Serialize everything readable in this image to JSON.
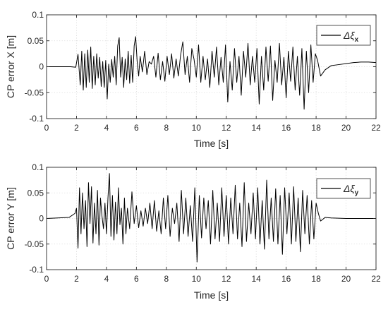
{
  "chart_data": [
    {
      "type": "line",
      "title": "",
      "xlabel": "Time [s]",
      "ylabel": "CP error X [m]",
      "xlim": [
        0,
        22
      ],
      "ylim": [
        -0.1,
        0.1
      ],
      "xticks": [
        0,
        2,
        4,
        6,
        8,
        10,
        12,
        14,
        16,
        18,
        20,
        22
      ],
      "xtick_labels": [
        "0",
        "2",
        "4",
        "6",
        "8",
        "10",
        "12",
        "14",
        "16",
        "18",
        "20",
        "22"
      ],
      "yticks": [
        -0.1,
        -0.05,
        0,
        0.05,
        0.1
      ],
      "ytick_labels": [
        "-0.1",
        "-0.05",
        "0",
        "0.05",
        "0.1"
      ],
      "grid": true,
      "legend_position": "top-right",
      "series": [
        {
          "name_symbol": "Δξ",
          "name_subscript": "x",
          "color": "#000000",
          "x": [
            0,
            1.6,
            1.95,
            2.1,
            2.25,
            2.35,
            2.45,
            2.55,
            2.65,
            2.75,
            2.85,
            2.95,
            3.05,
            3.15,
            3.25,
            3.35,
            3.45,
            3.55,
            3.65,
            3.75,
            3.85,
            3.95,
            4.05,
            4.15,
            4.25,
            4.35,
            4.45,
            4.55,
            4.65,
            4.75,
            4.85,
            4.95,
            5.05,
            5.15,
            5.25,
            5.35,
            5.45,
            5.55,
            5.65,
            5.75,
            5.85,
            5.95,
            6.05,
            6.15,
            6.25,
            6.4,
            6.55,
            6.7,
            6.85,
            7.0,
            7.15,
            7.3,
            7.45,
            7.6,
            7.75,
            7.9,
            8.05,
            8.2,
            8.35,
            8.5,
            8.65,
            8.8,
            8.95,
            9.1,
            9.25,
            9.4,
            9.55,
            9.7,
            9.85,
            10.0,
            10.15,
            10.3,
            10.45,
            10.6,
            10.75,
            10.9,
            11.05,
            11.2,
            11.35,
            11.5,
            11.65,
            11.8,
            11.95,
            12.1,
            12.25,
            12.4,
            12.55,
            12.7,
            12.85,
            13.0,
            13.15,
            13.3,
            13.45,
            13.6,
            13.75,
            13.9,
            14.05,
            14.2,
            14.35,
            14.5,
            14.65,
            14.8,
            14.95,
            15.1,
            15.25,
            15.4,
            15.55,
            15.7,
            15.85,
            16.0,
            16.15,
            16.3,
            16.45,
            16.6,
            16.75,
            16.9,
            17.05,
            17.2,
            17.35,
            17.5,
            17.65,
            17.8,
            17.95,
            18.1,
            18.3,
            18.6,
            19.0,
            19.5,
            20.0,
            20.5,
            21.0,
            21.5,
            22.0
          ],
          "y": [
            0,
            0,
            -0.001,
            0.024,
            -0.035,
            0.03,
            -0.045,
            0.025,
            -0.04,
            0.032,
            -0.03,
            0.038,
            -0.042,
            0.02,
            -0.035,
            0.025,
            -0.022,
            0.018,
            -0.038,
            0.01,
            -0.04,
            0.012,
            -0.062,
            0.005,
            -0.03,
            0.014,
            -0.02,
            0.02,
            -0.035,
            0.04,
            0.056,
            -0.02,
            0.018,
            -0.04,
            0.015,
            -0.025,
            0.03,
            -0.032,
            0.022,
            -0.03,
            0.04,
            0.058,
            0.01,
            -0.018,
            0.02,
            -0.01,
            0.03,
            -0.015,
            0.01,
            0.005,
            0.02,
            -0.02,
            0.026,
            -0.025,
            0.01,
            -0.028,
            0.02,
            -0.015,
            0.025,
            -0.022,
            0.015,
            -0.018,
            0.022,
            0.048,
            -0.015,
            0.02,
            -0.03,
            0.035,
            0.014,
            -0.02,
            0.042,
            -0.03,
            0.02,
            -0.025,
            0.015,
            -0.04,
            0.03,
            -0.02,
            0.038,
            -0.035,
            0.018,
            -0.03,
            0.042,
            -0.068,
            0.01,
            -0.045,
            0.035,
            -0.03,
            0.02,
            -0.055,
            0.03,
            -0.02,
            0.045,
            -0.035,
            0.02,
            -0.03,
            0.035,
            -0.072,
            0.02,
            -0.045,
            0.038,
            -0.028,
            0.04,
            -0.065,
            0.012,
            -0.03,
            0.045,
            -0.035,
            0.018,
            -0.06,
            0.03,
            -0.028,
            0.038,
            -0.045,
            0.02,
            -0.055,
            0.035,
            -0.082,
            0.03,
            -0.05,
            0.042,
            -0.03,
            0.025,
            0.012,
            -0.018,
            -0.006,
            0.002,
            0.004,
            0.006,
            0.008,
            0.009,
            0.009,
            0.008
          ]
        }
      ]
    },
    {
      "type": "line",
      "title": "",
      "xlabel": "Time [s]",
      "ylabel": "CP error Y [m]",
      "xlim": [
        0,
        22
      ],
      "ylim": [
        -0.1,
        0.1
      ],
      "xticks": [
        0,
        2,
        4,
        6,
        8,
        10,
        12,
        14,
        16,
        18,
        20,
        22
      ],
      "xtick_labels": [
        "0",
        "2",
        "4",
        "6",
        "8",
        "10",
        "12",
        "14",
        "16",
        "18",
        "20",
        "22"
      ],
      "yticks": [
        -0.1,
        -0.05,
        0,
        0.05,
        0.1
      ],
      "ytick_labels": [
        "-0.1",
        "-0.05",
        "0",
        "0.05",
        "0.1"
      ],
      "grid": true,
      "legend_position": "top-right",
      "series": [
        {
          "name_symbol": "Δξ",
          "name_subscript": "y",
          "color": "#000000",
          "x": [
            0,
            1.5,
            1.9,
            2.0,
            2.1,
            2.2,
            2.3,
            2.4,
            2.5,
            2.6,
            2.7,
            2.8,
            2.9,
            3.0,
            3.1,
            3.2,
            3.3,
            3.4,
            3.5,
            3.6,
            3.7,
            3.8,
            3.9,
            4.0,
            4.1,
            4.2,
            4.3,
            4.4,
            4.5,
            4.6,
            4.7,
            4.8,
            4.9,
            5.0,
            5.1,
            5.2,
            5.3,
            5.4,
            5.55,
            5.7,
            5.85,
            6.0,
            6.15,
            6.3,
            6.45,
            6.6,
            6.75,
            6.9,
            7.05,
            7.2,
            7.35,
            7.5,
            7.65,
            7.8,
            7.95,
            8.1,
            8.25,
            8.4,
            8.55,
            8.7,
            8.85,
            9.0,
            9.15,
            9.3,
            9.45,
            9.6,
            9.75,
            9.9,
            10.05,
            10.2,
            10.35,
            10.5,
            10.65,
            10.8,
            10.95,
            11.1,
            11.25,
            11.4,
            11.55,
            11.7,
            11.85,
            12.0,
            12.15,
            12.3,
            12.45,
            12.6,
            12.75,
            12.9,
            13.05,
            13.2,
            13.35,
            13.5,
            13.65,
            13.8,
            13.95,
            14.1,
            14.25,
            14.4,
            14.55,
            14.7,
            14.85,
            15.0,
            15.15,
            15.3,
            15.45,
            15.6,
            15.75,
            15.9,
            16.05,
            16.2,
            16.35,
            16.5,
            16.65,
            16.8,
            16.95,
            17.1,
            17.25,
            17.4,
            17.55,
            17.7,
            17.85,
            18.0,
            18.15,
            18.3,
            18.6,
            19.0,
            20.0,
            21.0,
            22.0
          ],
          "y": [
            0,
            0.002,
            0.01,
            0.02,
            -0.058,
            0.06,
            -0.03,
            0.05,
            -0.02,
            0.035,
            -0.055,
            0.07,
            -0.01,
            0.062,
            -0.048,
            0.03,
            -0.03,
            0.055,
            -0.052,
            0.04,
            0.005,
            -0.02,
            0.03,
            -0.03,
            0.04,
            0.088,
            -0.035,
            0.045,
            -0.042,
            0.032,
            -0.03,
            0.06,
            -0.012,
            0.02,
            -0.05,
            0.04,
            -0.03,
            0.02,
            -0.02,
            0.052,
            -0.01,
            0.025,
            -0.018,
            0.015,
            -0.015,
            0.02,
            -0.01,
            0.03,
            -0.02,
            0.035,
            -0.025,
            0.015,
            -0.03,
            0.04,
            -0.02,
            0.045,
            -0.035,
            0.02,
            -0.01,
            0.03,
            -0.045,
            0.055,
            -0.03,
            0.04,
            -0.035,
            0.025,
            -0.045,
            0.06,
            -0.085,
            0.045,
            -0.038,
            0.04,
            -0.02,
            0.035,
            -0.05,
            0.055,
            -0.04,
            0.03,
            -0.045,
            0.06,
            -0.035,
            0.045,
            -0.05,
            0.04,
            -0.03,
            0.065,
            -0.04,
            0.03,
            -0.055,
            0.07,
            -0.045,
            0.03,
            -0.03,
            0.05,
            -0.04,
            0.06,
            -0.05,
            0.035,
            -0.06,
            0.075,
            -0.04,
            0.04,
            -0.045,
            0.058,
            -0.05,
            0.045,
            -0.07,
            0.06,
            -0.03,
            0.05,
            -0.05,
            0.062,
            -0.045,
            0.04,
            -0.065,
            0.055,
            -0.03,
            0.045,
            -0.05,
            0.035,
            -0.04,
            0.03,
            0.01,
            -0.005,
            0.002,
            0.001,
            0,
            0,
            0
          ]
        }
      ]
    }
  ]
}
